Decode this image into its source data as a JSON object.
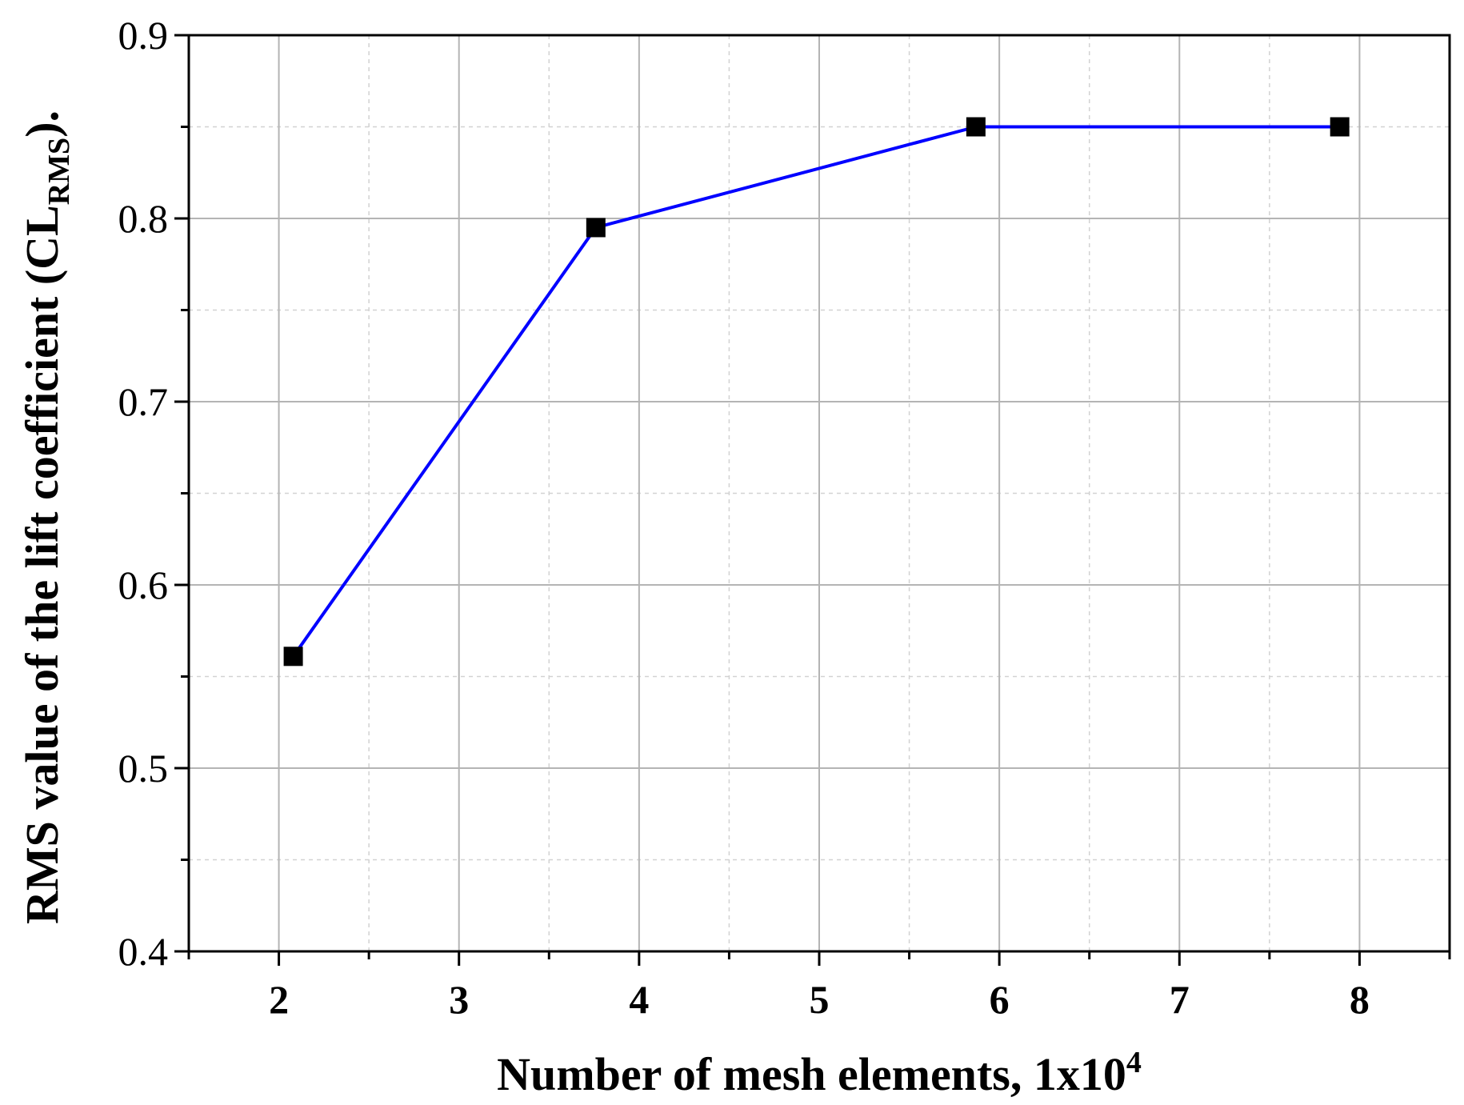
{
  "chart_data": {
    "type": "line",
    "xlabel": {
      "text": "Number of mesh elements, 1x10",
      "superscript": "4"
    },
    "ylabel": {
      "text": "RMS value of the lift coefficient (CL",
      "subscript": "RMS",
      "suffix": ")."
    },
    "xlim": [
      1.5,
      8.5
    ],
    "ylim": [
      0.4,
      0.9
    ],
    "xticks": [
      2,
      3,
      4,
      5,
      6,
      7,
      8
    ],
    "xtick_labels": [
      "2",
      "3",
      "4",
      "5",
      "6",
      "7",
      "8"
    ],
    "yticks": [
      0.4,
      0.5,
      0.6,
      0.7,
      0.8,
      0.9
    ],
    "ytick_labels": [
      "0.4",
      "0.5",
      "0.6",
      "0.7",
      "0.8",
      "0.9"
    ],
    "x_minor_step": 0.5,
    "y_minor_step": 0.05,
    "grid": true,
    "line_color": "#0000ff",
    "marker_color": "#000000",
    "marker": "square",
    "series": [
      {
        "x": [
          2.08,
          3.76,
          5.87,
          7.89
        ],
        "y": [
          0.561,
          0.795,
          0.85,
          0.85
        ]
      }
    ]
  }
}
